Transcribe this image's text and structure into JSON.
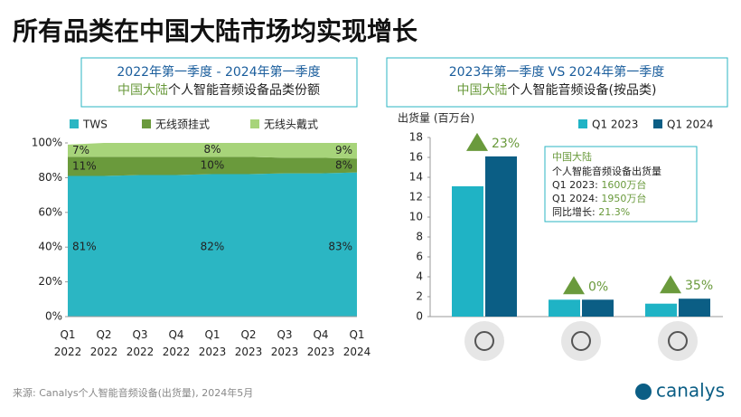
{
  "title": "所有品类在中国大陆市场均实现增长",
  "source": "来源: Canalys个人智能音频设备(出货量), 2024年5月",
  "logo": "canalys",
  "chart_data": [
    {
      "type": "stacked_area",
      "title": "2022年第一季度 - 2024年第一季度",
      "subtitle": [
        "中国大陆",
        "个人智能音频设备品类份额"
      ],
      "categories": [
        "Q1 2022",
        "Q2 2022",
        "Q3 2022",
        "Q4 2022",
        "Q1 2023",
        "Q2 2023",
        "Q3 2023",
        "Q4 2023",
        "Q1 2024"
      ],
      "series": [
        {
          "name": "TWS",
          "color": "#2bb6c3",
          "values": [
            81,
            81,
            81.5,
            81.5,
            82,
            82,
            82.5,
            82.5,
            83
          ],
          "value_labels": [
            "81%",
            null,
            null,
            null,
            "82%",
            null,
            null,
            null,
            "83%"
          ]
        },
        {
          "name": "无线颈挂式",
          "color": "#6a9a3c",
          "values": [
            11,
            11,
            10.5,
            10.5,
            10,
            10,
            9,
            9,
            8
          ],
          "value_labels": [
            "11%",
            null,
            null,
            null,
            "10%",
            null,
            null,
            null,
            "8%"
          ]
        },
        {
          "name": "无线头戴式",
          "color": "#a7d47a",
          "values": [
            7,
            8,
            8,
            8,
            8,
            8,
            8.5,
            8.5,
            9
          ],
          "value_labels": [
            "7%",
            null,
            null,
            null,
            "8%",
            null,
            null,
            null,
            "9%"
          ]
        }
      ],
      "ylim": [
        0,
        100
      ],
      "yticks": [
        {
          "value": 0,
          "label": "0%"
        },
        {
          "value": 20,
          "label": "20%"
        },
        {
          "value": 40,
          "label": "40%"
        },
        {
          "value": 60,
          "label": "60%"
        },
        {
          "value": 80,
          "label": "80%"
        },
        {
          "value": 100,
          "label": "100%"
        }
      ],
      "legend": "top"
    },
    {
      "type": "grouped_bar",
      "title": "2023年第一季度 VS 2024年第一季度",
      "subtitle": [
        "中国大陆",
        "个人智能音频设备(按品类)"
      ],
      "ylabel": "出货量 (百万台)",
      "categories": [
        null,
        null,
        null
      ],
      "series": [
        {
          "name": "Q1 2023",
          "color": "#1fb3c5",
          "values": [
            13.1,
            1.7,
            1.3
          ]
        },
        {
          "name": "Q1 2024",
          "color": "#0b5e85",
          "values": [
            16.1,
            1.7,
            1.8
          ]
        }
      ],
      "ylim": [
        0,
        18
      ],
      "yticks": [
        0,
        2,
        4,
        6,
        8,
        10,
        12,
        14,
        16,
        18
      ],
      "growth_labels": [
        "23%",
        "0%",
        "35%"
      ],
      "info_box": {
        "title": "中国大陆",
        "subtitle": "个人智能音频设备出货量",
        "rows": [
          {
            "label": "Q1 2023: ",
            "value": "1600万台"
          },
          {
            "label": "Q1 2024: ",
            "value": "1950万台"
          },
          {
            "label": "同比增长: ",
            "value": "21.3%"
          }
        ]
      },
      "legend": "top-right"
    }
  ]
}
